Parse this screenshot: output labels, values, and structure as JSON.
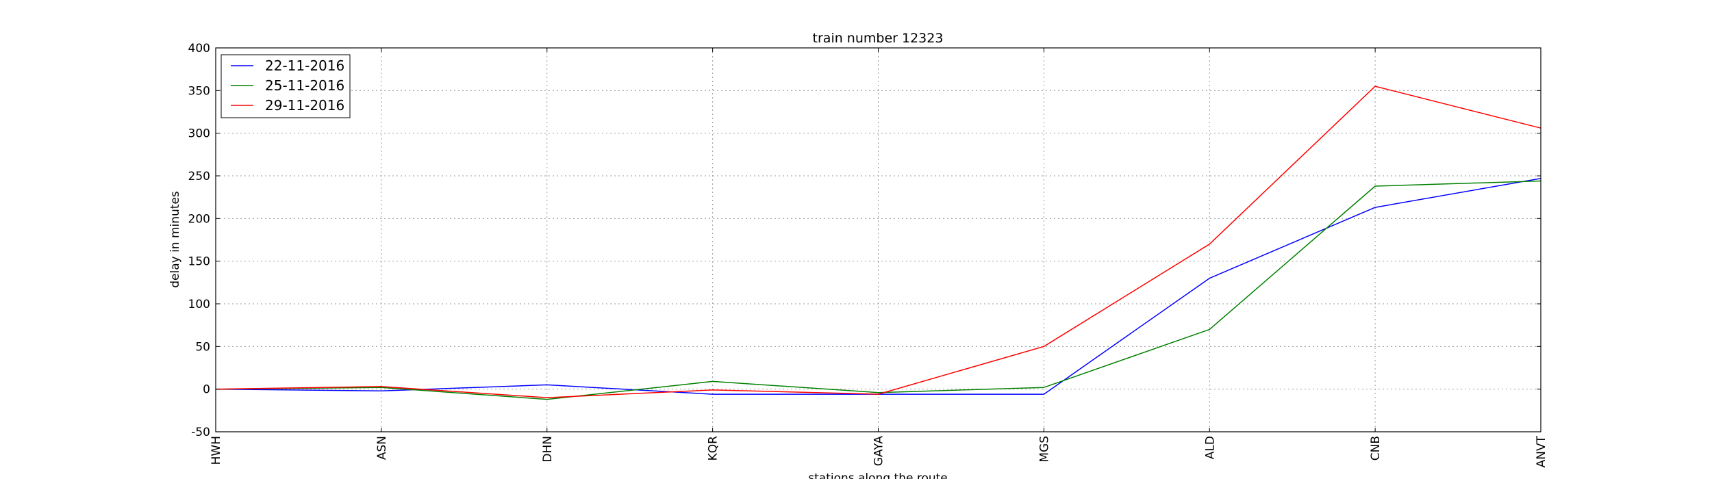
{
  "chart_data": {
    "type": "line",
    "title": "train number 12323",
    "xlabel": "stations along the route",
    "ylabel": "delay in minutes",
    "categories": [
      "HWH",
      "ASN",
      "DHN",
      "KQR",
      "GAYA",
      "MGS",
      "ALD",
      "CNB",
      "ANVT"
    ],
    "ylim": [
      -50,
      400
    ],
    "yticks": [
      -50,
      0,
      50,
      100,
      150,
      200,
      250,
      300,
      350,
      400
    ],
    "grid": true,
    "legend_position": "top-left",
    "series": [
      {
        "name": "22-11-2016",
        "color": "#0000ff",
        "values": [
          0,
          -2,
          5,
          -6,
          -6,
          -6,
          130,
          213,
          247
        ]
      },
      {
        "name": "25-11-2016",
        "color": "#008000",
        "values": [
          0,
          2,
          -12,
          9,
          -4,
          2,
          70,
          238,
          244
        ]
      },
      {
        "name": "29-11-2016",
        "color": "#ff0000",
        "values": [
          0,
          3,
          -10,
          -1,
          -6,
          50,
          170,
          355,
          306
        ]
      }
    ]
  }
}
